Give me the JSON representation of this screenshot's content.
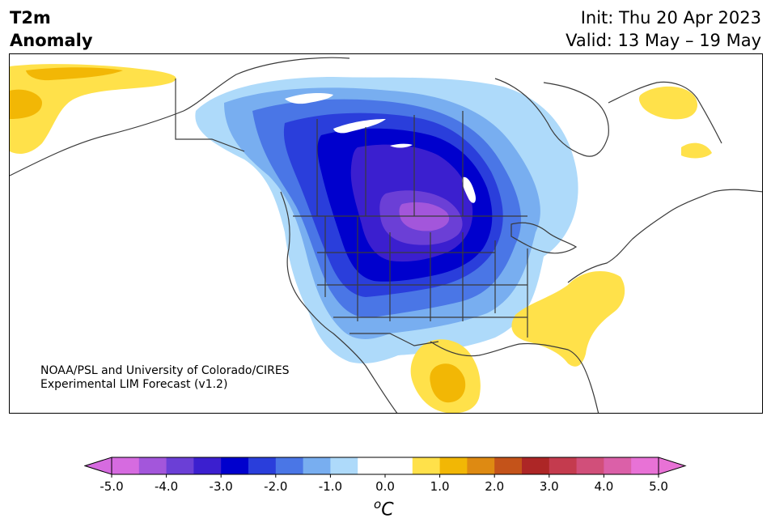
{
  "header": {
    "title_line1": "T2m",
    "title_line2": "Anomaly",
    "init": "Init: Thu 20 Apr 2023",
    "valid": "Valid: 13 May – 19 May"
  },
  "credit": {
    "line1": "NOAA/PSL and University of Colorado/CIRES",
    "line2": "Experimental LIM Forecast (v1.2)"
  },
  "colorbar": {
    "unit_base": "C",
    "unit_sup": "o",
    "tick_labels": [
      "-5.0",
      "-4.0",
      "-3.0",
      "-2.0",
      "-1.0",
      "0.0",
      "1.0",
      "2.0",
      "3.0",
      "4.0",
      "5.0"
    ],
    "colors": [
      "#d66be0",
      "#a356db",
      "#6b3fd6",
      "#3b1fcf",
      "#0000cd",
      "#2a3edb",
      "#4a76e6",
      "#78aef0",
      "#aedafa",
      "#ffffff",
      "#ffffff",
      "#ffe14a",
      "#f2b705",
      "#de8a12",
      "#c4531a",
      "#ad2626",
      "#c43b4e",
      "#d14f7a",
      "#db60a8",
      "#e872d6"
    ],
    "under_color": "#d66be0",
    "over_color": "#e872d6"
  },
  "map": {
    "land_color": "#ffffff",
    "outline_color": "#3a3a3a"
  }
}
